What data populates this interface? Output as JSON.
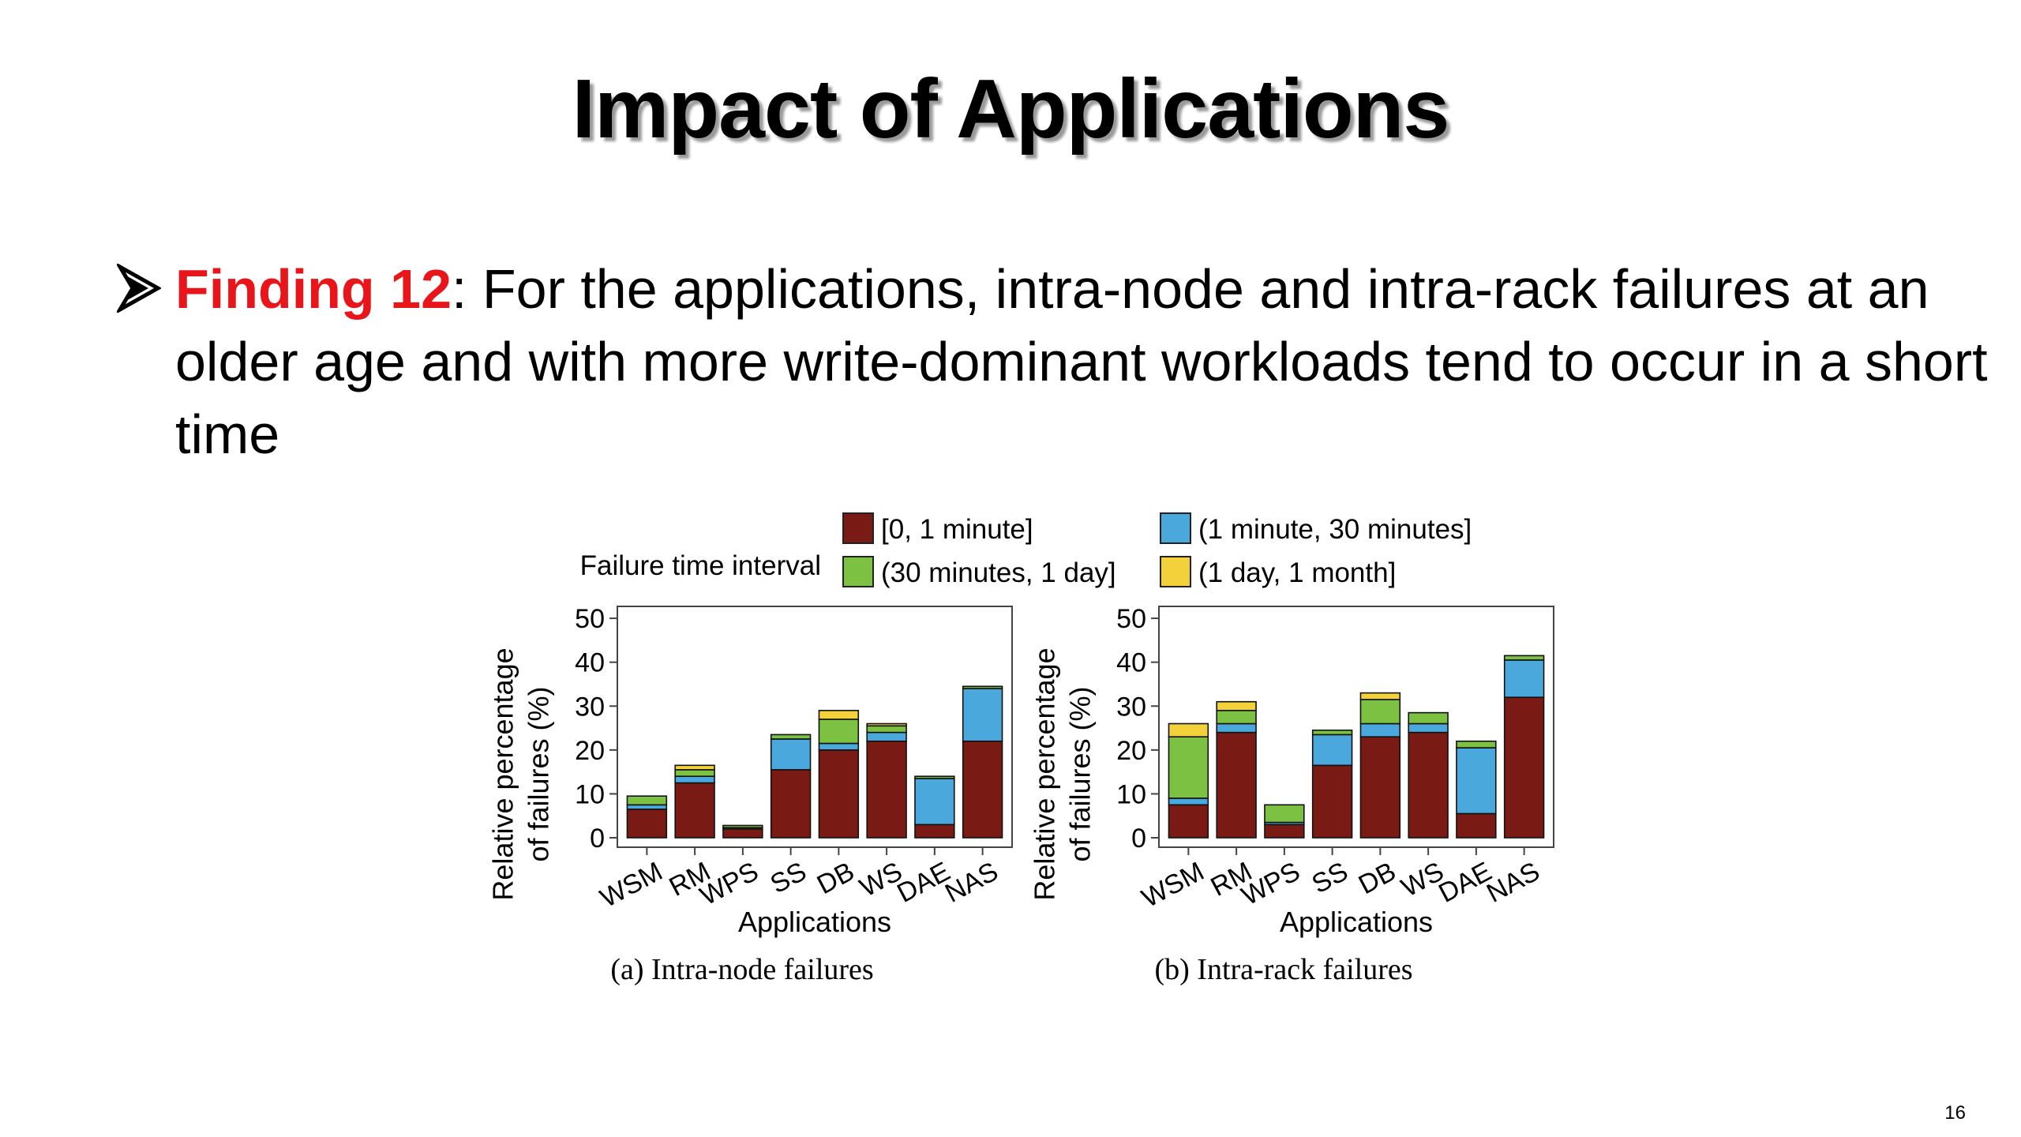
{
  "slide": {
    "title": "Impact of Applications",
    "finding_label": "Finding 12",
    "finding_text": ": For the applications, intra-node and intra-rack failures at an older age and with more write-dominant workloads tend to occur in a short time",
    "page_number": "16",
    "bullet_icon": "arrow-bullet-icon"
  },
  "legend": {
    "title": "Failure time interval",
    "position": "top-center",
    "entries": [
      {
        "label": "[0, 1 minute]",
        "color": "#7a1a14"
      },
      {
        "label": "(1 minute, 30 minutes]",
        "color": "#4aa8dc"
      },
      {
        "label": "(30 minutes, 1 day]",
        "color": "#7dc143"
      },
      {
        "label": "(1 day, 1 month]",
        "color": "#f2d13b"
      }
    ]
  },
  "chart_data": [
    {
      "type": "bar",
      "stacked": true,
      "caption": "(a) Intra-node failures",
      "xlabel": "Applications",
      "ylabel": "Relative percentage of failures (%)",
      "ylim": [
        0,
        52
      ],
      "yticks": [
        0,
        10,
        20,
        30,
        40,
        50
      ],
      "grid": false,
      "categories": [
        "WSM",
        "RM",
        "WPS",
        "SS",
        "DB",
        "WS",
        "DAE",
        "NAS"
      ],
      "series": [
        {
          "name": "[0, 1 minute]",
          "color": "#7a1a14",
          "values": [
            6.5,
            12.5,
            2.0,
            15.5,
            20.0,
            22.0,
            3.0,
            22.0
          ]
        },
        {
          "name": "(1 minute, 30 minutes]",
          "color": "#4aa8dc",
          "values": [
            1.0,
            1.5,
            0.3,
            7.0,
            1.5,
            2.0,
            10.5,
            12.0
          ]
        },
        {
          "name": "(30 minutes, 1 day]",
          "color": "#7dc143",
          "values": [
            2.0,
            1.5,
            0.5,
            1.0,
            5.5,
            1.5,
            0.5,
            0.5
          ]
        },
        {
          "name": "(1 day, 1 month]",
          "color": "#f2d13b",
          "values": [
            0.0,
            1.0,
            0.0,
            0.0,
            2.0,
            0.5,
            0.0,
            0.0
          ]
        }
      ]
    },
    {
      "type": "bar",
      "stacked": true,
      "caption": "(b) Intra-rack failures",
      "xlabel": "Applications",
      "ylabel": "Relative percentage of failures (%)",
      "ylim": [
        0,
        52
      ],
      "yticks": [
        0,
        10,
        20,
        30,
        40,
        50
      ],
      "grid": false,
      "categories": [
        "WSM",
        "RM",
        "WPS",
        "SS",
        "DB",
        "WS",
        "DAE",
        "NAS"
      ],
      "series": [
        {
          "name": "[0, 1 minute]",
          "color": "#7a1a14",
          "values": [
            7.5,
            24.0,
            3.0,
            16.5,
            23.0,
            24.0,
            5.5,
            32.0
          ]
        },
        {
          "name": "(1 minute, 30 minutes]",
          "color": "#4aa8dc",
          "values": [
            1.5,
            2.0,
            0.5,
            7.0,
            3.0,
            2.0,
            15.0,
            8.5
          ]
        },
        {
          "name": "(30 minutes, 1 day]",
          "color": "#7dc143",
          "values": [
            14.0,
            3.0,
            4.0,
            1.0,
            5.5,
            2.5,
            1.5,
            1.0
          ]
        },
        {
          "name": "(1 day, 1 month]",
          "color": "#f2d13b",
          "values": [
            3.0,
            2.0,
            0.0,
            0.0,
            1.5,
            0.0,
            0.0,
            0.0
          ]
        }
      ]
    }
  ]
}
